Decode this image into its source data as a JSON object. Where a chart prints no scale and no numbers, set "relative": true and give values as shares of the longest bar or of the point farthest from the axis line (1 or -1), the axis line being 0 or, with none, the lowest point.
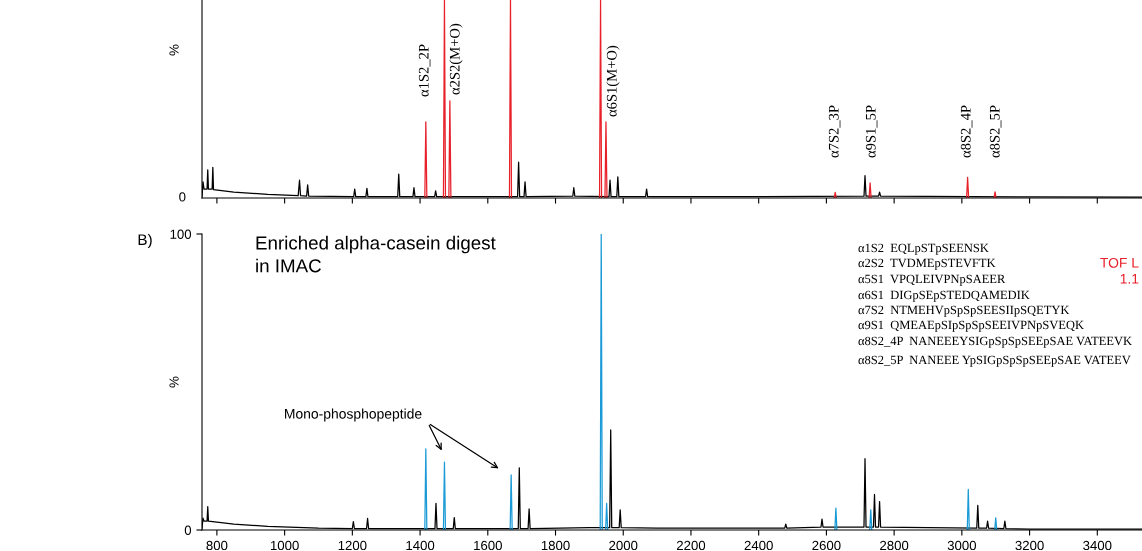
{
  "chart_data": [
    {
      "type": "line",
      "ylabel": "%",
      "relative": true,
      "xlim": [
        756,
        3532
      ],
      "xticks": [
        800,
        1000,
        1200,
        1400,
        1600,
        1800,
        2000,
        2200,
        2400,
        2600,
        2800,
        3000,
        3200,
        3400
      ],
      "tick_labels": false,
      "grid": false,
      "legend": false,
      "series": [
        {
          "color": "#000000",
          "x": [
            756,
            759,
            762,
            771,
            773,
            775,
            786,
            788,
            790,
            850,
            950,
            1040,
            1044,
            1047,
            1065,
            1068,
            1071,
            1204,
            1207,
            1210,
            1240,
            1243,
            1246,
            1334,
            1337,
            1340,
            1379,
            1382,
            1385,
            1443,
            1446,
            1449,
            1688,
            1691,
            1694,
            1707,
            1710,
            1713,
            1851,
            1854,
            1857,
            1958,
            1961,
            1964,
            1981,
            1984,
            1987,
            2066,
            2069,
            2072,
            2300,
            2711,
            2714,
            2717,
            2754,
            2757,
            2760,
            3200,
            3532
          ],
          "values": [
            0.007,
            0.082,
            0.045,
            0.045,
            0.142,
            0.045,
            0.045,
            0.155,
            0.042,
            0.03,
            0.018,
            0.012,
            0.09,
            0.012,
            0.01,
            0.066,
            0.01,
            0.007,
            0.045,
            0.007,
            0.007,
            0.049,
            0.007,
            0.007,
            0.121,
            0.007,
            0.007,
            0.052,
            0.007,
            0.007,
            0.036,
            0.007,
            0.007,
            0.181,
            0.007,
            0.007,
            0.082,
            0.007,
            0.009,
            0.052,
            0.009,
            0.007,
            0.09,
            0.007,
            0.007,
            0.107,
            0.007,
            0.007,
            0.045,
            0.007,
            0.007,
            0.009,
            0.113,
            0.009,
            0.009,
            0.03,
            0.009,
            0.006,
            0.004
          ]
        },
        {
          "color": "#e8202a",
          "x": [
            1414,
            1417,
            1420
          ],
          "values": [
            0,
            0.384,
            0
          ]
        },
        {
          "color": "#e8202a",
          "x": [
            1469,
            1472,
            1475
          ],
          "values": [
            0,
            1,
            0
          ]
        },
        {
          "color": "#e8202a",
          "x": [
            1485,
            1488,
            1491
          ],
          "values": [
            0,
            0.491,
            0
          ]
        },
        {
          "color": "#e8202a",
          "x": [
            1664,
            1667,
            1670
          ],
          "values": [
            0,
            1,
            0
          ]
        },
        {
          "color": "#e8202a",
          "x": [
            1930,
            1933,
            1936
          ],
          "values": [
            0,
            1,
            0
          ]
        },
        {
          "color": "#e8202a",
          "x": [
            1946,
            1949,
            1952
          ],
          "values": [
            0,
            0.385,
            0
          ]
        },
        {
          "color": "#e8202a",
          "x": [
            2623,
            2626,
            2629
          ],
          "values": [
            0,
            0.028,
            0
          ]
        },
        {
          "color": "#e8202a",
          "x": [
            2726,
            2729,
            2732
          ],
          "values": [
            0,
            0.076,
            0
          ]
        },
        {
          "color": "#e8202a",
          "x": [
            3014,
            3017,
            3020
          ],
          "values": [
            0,
            0.104,
            0
          ]
        },
        {
          "color": "#e8202a",
          "x": [
            3095,
            3098,
            3101
          ],
          "values": [
            0,
            0.031,
            0
          ]
        }
      ],
      "annotations": [
        "α1S2_2P",
        "α2S2(M+O)",
        "α6S1(M+O)",
        "α7S2_3P",
        "α9S1_5P",
        "α8S2_4P",
        "α8S2_5P",
        "0"
      ]
    },
    {
      "type": "line",
      "title": "B)",
      "ylabel": "%",
      "xlim": [
        756,
        3532
      ],
      "ylim": [
        0,
        100
      ],
      "xticks": [
        800,
        1000,
        1200,
        1400,
        1600,
        1800,
        2000,
        2200,
        2400,
        2600,
        2800,
        3000,
        3200,
        3400
      ],
      "yticks": [
        0,
        100
      ],
      "grid": false,
      "legend": false,
      "series": [
        {
          "color": "#000000",
          "x": [
            756,
            759,
            762,
            771,
            773,
            775,
            850,
            950,
            1100,
            1200,
            1203,
            1206,
            1242,
            1245,
            1248,
            1444,
            1447,
            1450,
            1498,
            1501,
            1504,
            1690,
            1693,
            1696,
            1719,
            1722,
            1725,
            1900,
            1960,
            1963,
            1966,
            1988,
            1991,
            1994,
            2100,
            2477,
            2480,
            2483,
            2584,
            2587,
            2590,
            2711,
            2714,
            2717,
            2739,
            2742,
            2745,
            2754,
            2757,
            2760,
            3044,
            3047,
            3050,
            3073,
            3076,
            3079,
            3124,
            3127,
            3130,
            3200,
            3532
          ],
          "values": [
            0.5,
            4,
            3,
            3,
            7.9,
            3,
            2,
            1.2,
            0.6,
            0.5,
            2.8,
            0.5,
            0.5,
            3.9,
            0.5,
            0.5,
            9,
            0.5,
            0.5,
            4.2,
            0.5,
            0.5,
            21,
            0.5,
            0.5,
            7.1,
            0.5,
            0.8,
            0.8,
            33.8,
            0.8,
            0.8,
            6.8,
            0.8,
            0.6,
            0.6,
            2,
            0.6,
            1,
            3.7,
            1,
            1,
            24.1,
            1,
            1,
            12,
            1,
            1,
            9.6,
            1,
            0.6,
            8.3,
            0.6,
            0.6,
            3,
            0.6,
            0.5,
            3,
            0.5,
            0.3,
            0.3
          ]
        },
        {
          "color": "#1a9ad6",
          "x": [
            1414,
            1417,
            1420
          ],
          "values": [
            0,
            27.4,
            0
          ]
        },
        {
          "color": "#1a9ad6",
          "x": [
            1469,
            1472,
            1475
          ],
          "values": [
            0,
            22.9,
            0
          ]
        },
        {
          "color": "#1a9ad6",
          "x": [
            1666,
            1669,
            1672
          ],
          "values": [
            0,
            18.6,
            0
          ]
        },
        {
          "color": "#1a9ad6",
          "x": [
            1932,
            1935,
            1938
          ],
          "values": [
            0,
            100,
            0
          ]
        },
        {
          "color": "#1a9ad6",
          "x": [
            1948,
            1951,
            1954
          ],
          "values": [
            0,
            9,
            0
          ]
        },
        {
          "color": "#1a9ad6",
          "x": [
            2625,
            2628,
            2631
          ],
          "values": [
            0,
            7.4,
            0
          ]
        },
        {
          "color": "#1a9ad6",
          "x": [
            2728,
            2731,
            2734
          ],
          "values": [
            0,
            6.8,
            0
          ]
        },
        {
          "color": "#1a9ad6",
          "x": [
            3016,
            3019,
            3022
          ],
          "values": [
            0,
            13.7,
            0
          ]
        },
        {
          "color": "#1a9ad6",
          "x": [
            3097,
            3100,
            3103
          ],
          "values": [
            0,
            4.1,
            0
          ]
        }
      ],
      "annotations": [
        "Enriched alpha-casein digest\nin IMAC",
        "Mono-phosphopeptide",
        "α1S2  EQLpSTpSEENSK",
        "α2S2  TVDMEpSTEVFTK",
        "α5S1  VPQLEIVPNpSAEER",
        "α6S1  DIGpSEpSTEDQAMEDIK",
        "α7S2  NTMEHVpSpSpSEESIIpSQETYK",
        "α9S1  QMEAEpSIpSpSpSEEIVPNpSVEQK",
        "α8S2_4P  NANEEEYSIGpSpSpSEEpSAE VATEEVK",
        "α8S2_5P  NANEEE YpSIGpSpSpSEEpSAE VATEEV",
        "TOF L",
        "1.1"
      ]
    }
  ]
}
